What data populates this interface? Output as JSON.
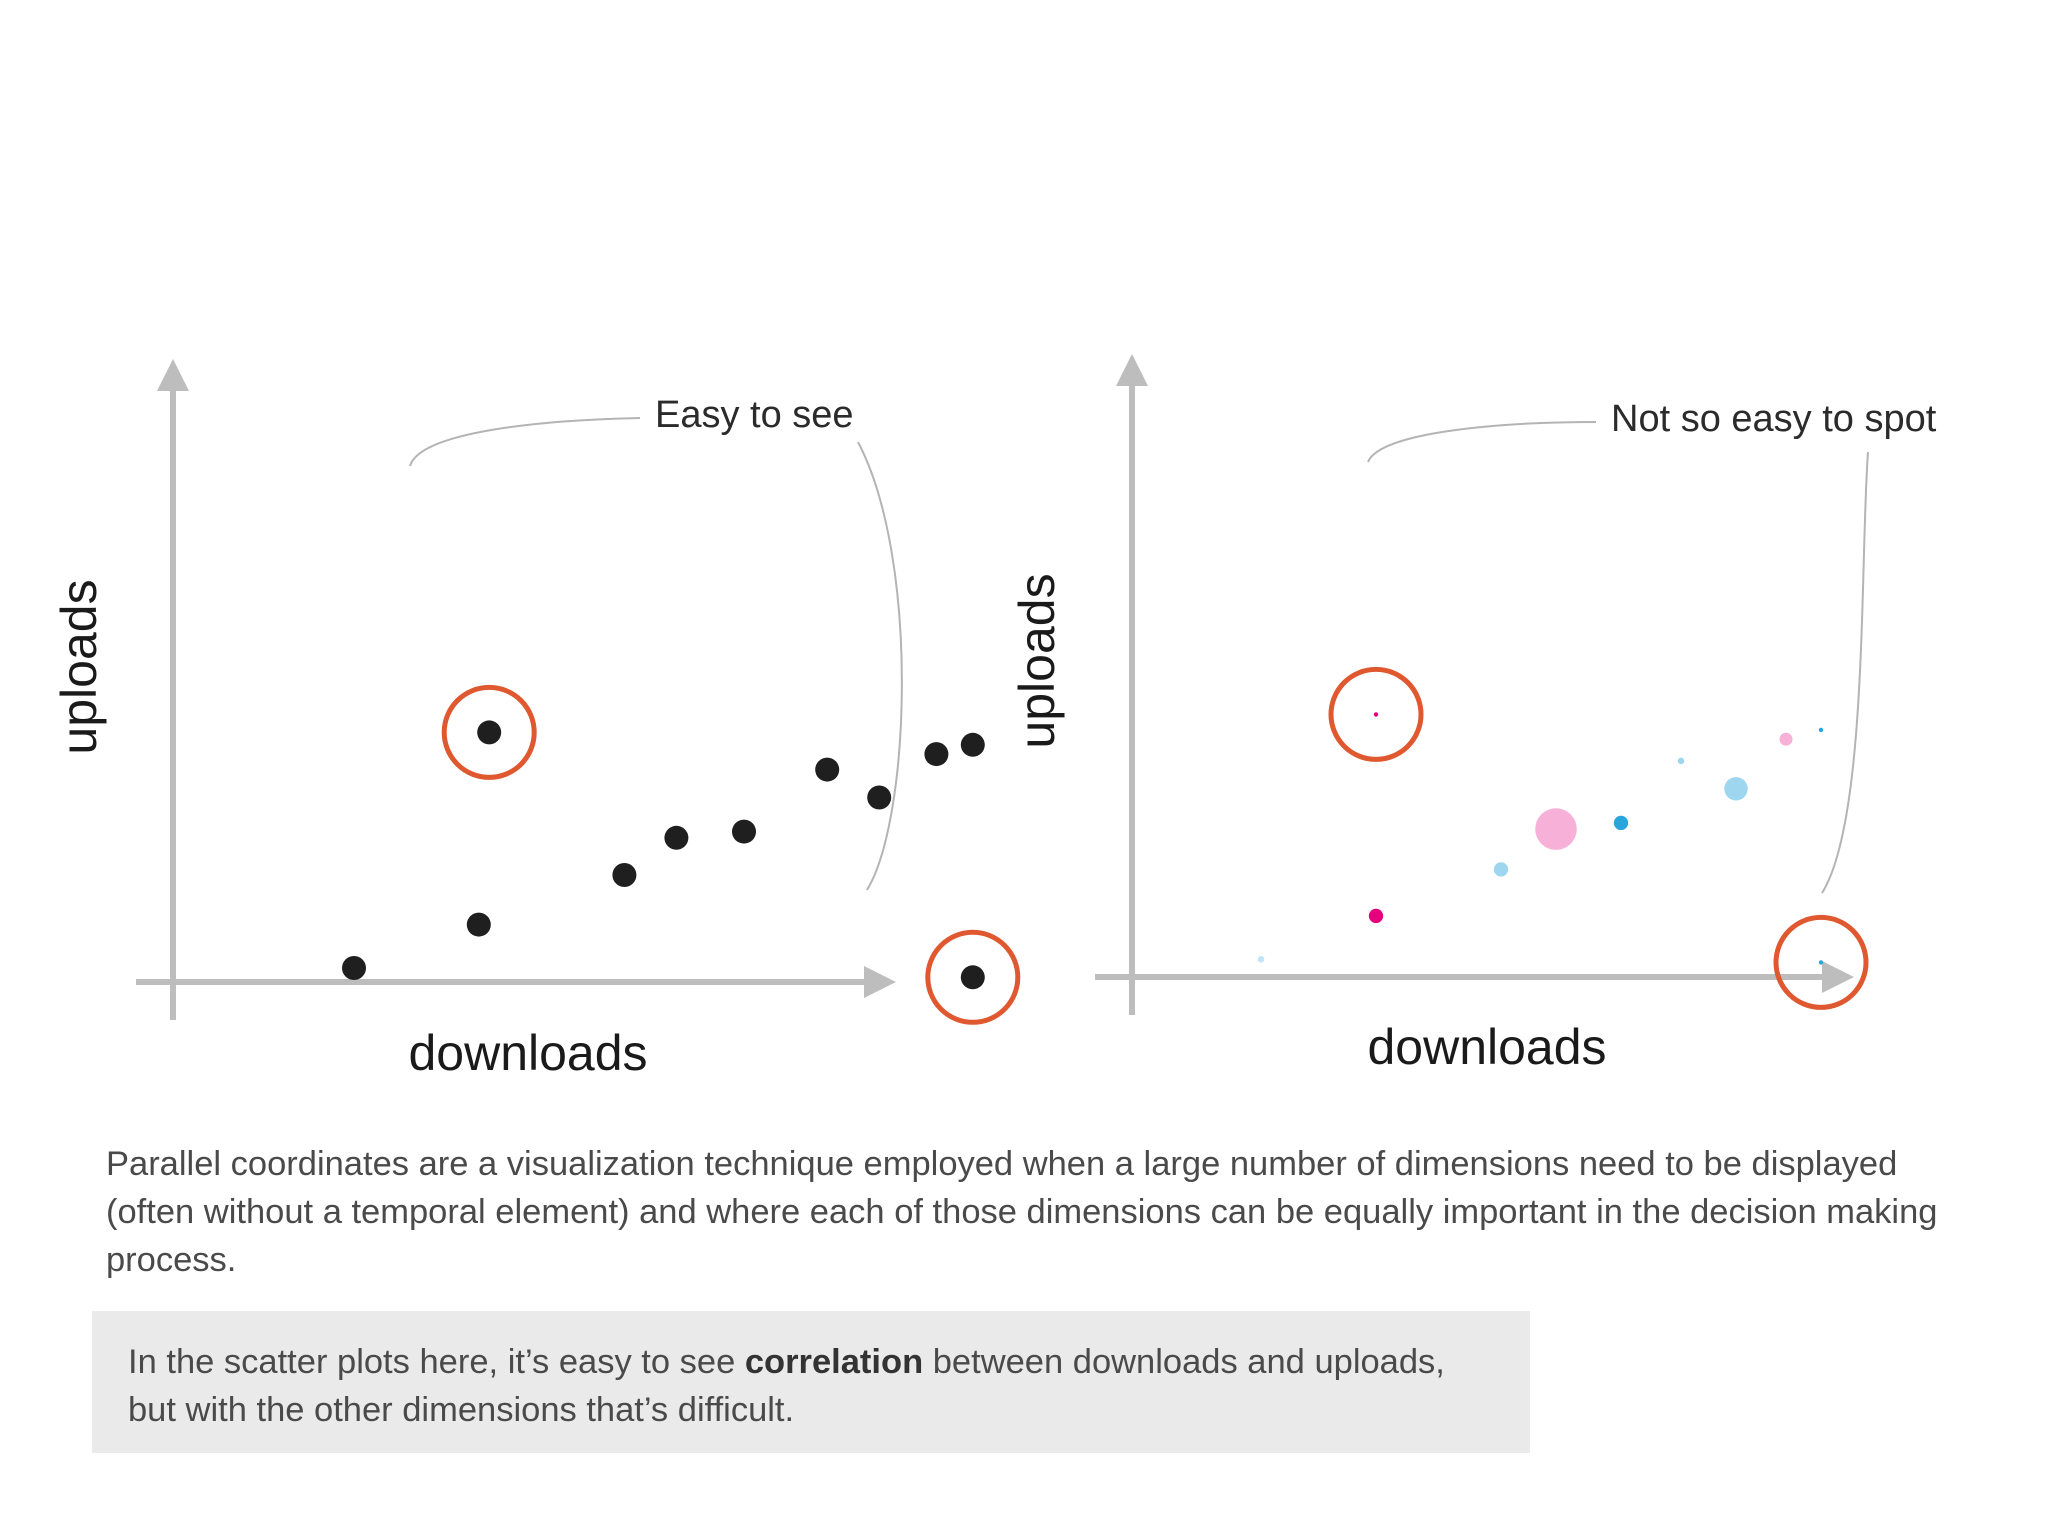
{
  "chart_data": [
    {
      "type": "scatter",
      "title": "",
      "xlabel": "downloads",
      "ylabel": "uploads",
      "callout": "Easy to see",
      "points": [
        {
          "x": 1.0,
          "y": 1.0,
          "size": 1,
          "color": "#1f1f1f"
        },
        {
          "x": 2.2,
          "y": 1.7,
          "size": 1,
          "color": "#1f1f1f"
        },
        {
          "x": 3.6,
          "y": 2.5,
          "size": 1,
          "color": "#1f1f1f"
        },
        {
          "x": 4.1,
          "y": 3.1,
          "size": 1,
          "color": "#1f1f1f"
        },
        {
          "x": 4.75,
          "y": 3.2,
          "size": 1,
          "color": "#1f1f1f"
        },
        {
          "x": 5.55,
          "y": 4.2,
          "size": 1,
          "color": "#1f1f1f"
        },
        {
          "x": 6.05,
          "y": 3.75,
          "size": 1,
          "color": "#1f1f1f"
        },
        {
          "x": 6.6,
          "y": 4.45,
          "size": 1,
          "color": "#1f1f1f"
        },
        {
          "x": 6.95,
          "y": 4.6,
          "size": 1,
          "color": "#1f1f1f"
        },
        {
          "x": 2.3,
          "y": 4.8,
          "size": 1,
          "color": "#1f1f1f",
          "highlight": true
        },
        {
          "x": 6.95,
          "y": 0.85,
          "size": 1,
          "color": "#1f1f1f",
          "highlight": true
        }
      ]
    },
    {
      "type": "scatter",
      "title": "",
      "xlabel": "downloads",
      "ylabel": "uploads",
      "callout": "Not so easy to spot",
      "points": [
        {
          "x": 0.8,
          "y": 0.85,
          "size": 0.25,
          "color": "#bfe4f5"
        },
        {
          "x": 1.95,
          "y": 1.55,
          "size": 0.55,
          "color": "#e5007e"
        },
        {
          "x": 3.2,
          "y": 2.3,
          "size": 0.55,
          "color": "#9fd6ef"
        },
        {
          "x": 3.75,
          "y": 2.95,
          "size": 1.6,
          "color": "#f7b0d8"
        },
        {
          "x": 4.4,
          "y": 3.05,
          "size": 0.55,
          "color": "#2aa5dc"
        },
        {
          "x": 5.55,
          "y": 3.6,
          "size": 0.9,
          "color": "#9fd6ef"
        },
        {
          "x": 5.0,
          "y": 4.05,
          "size": 0.25,
          "color": "#9fd6ef"
        },
        {
          "x": 6.05,
          "y": 4.4,
          "size": 0.5,
          "color": "#f7b0d8"
        },
        {
          "x": 6.4,
          "y": 4.55,
          "size": 0.15,
          "color": "#2aa5dc"
        },
        {
          "x": 1.95,
          "y": 4.8,
          "size": 0.15,
          "color": "#e5007e",
          "highlight": true
        },
        {
          "x": 6.4,
          "y": 0.8,
          "size": 0.1,
          "color": "#2aa5dc",
          "highlight": true
        }
      ]
    }
  ],
  "paragraph": "Parallel coordinates are a visualization technique employed when a large number of dimensions need to be displayed (often without a temporal element) and where each of those dimensions can be equally important in the decision making process.",
  "note": {
    "before": "In the scatter plots here, it’s easy to see ",
    "bold": "correlation",
    "after": " between downloads and uploads, but with the other dimensions that’s difficult."
  },
  "colors": {
    "axis": "#bdbdbd",
    "highlight_ring": "#e0582f",
    "note_background": "#eaeaeb"
  }
}
